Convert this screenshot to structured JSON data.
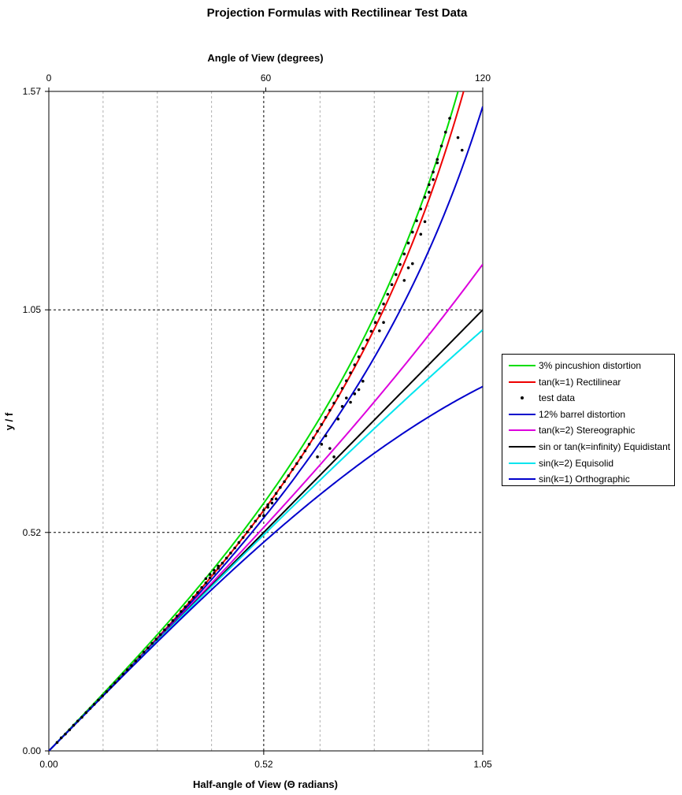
{
  "chart_data": {
    "type": "line",
    "title": "Projection Formulas with Rectilinear Test Data",
    "xlabel": "Half-angle of View (Θ radians)",
    "x2label": "Angle of View (degrees)",
    "ylabel": "y / f",
    "xlim": [
      0,
      1.05
    ],
    "ylim": [
      0,
      1.57
    ],
    "x2lim": [
      0,
      120
    ],
    "xticks": [
      0,
      0.52,
      1.05
    ],
    "xtick_labels": [
      "0.00",
      "0.52",
      "1.05"
    ],
    "x2ticks": [
      0,
      60,
      120
    ],
    "x2tick_labels": [
      "0",
      "60",
      "120"
    ],
    "yticks": [
      0,
      0.52,
      1.05,
      1.57
    ],
    "ytick_labels": [
      "0.00",
      "0.52",
      "1.05",
      "1.57"
    ],
    "grid": "vertical dashed gridlines every 15 degrees; dashed gridlines at major ticks",
    "legend_position": "right",
    "series": [
      {
        "name": "3% pincushion distortion",
        "color": "#00dd00",
        "formula": "1.03*tan(x)"
      },
      {
        "name": "tan(k=1) Rectilinear",
        "color": "#ee0000",
        "formula": "tan(x)"
      },
      {
        "name": "test data",
        "color": "#000000",
        "style": "points",
        "points": [
          [
            0.02,
            0.02
          ],
          [
            0.03,
            0.031
          ],
          [
            0.04,
            0.04
          ],
          [
            0.05,
            0.05
          ],
          [
            0.06,
            0.061
          ],
          [
            0.07,
            0.071
          ],
          [
            0.08,
            0.08
          ],
          [
            0.09,
            0.091
          ],
          [
            0.1,
            0.101
          ],
          [
            0.11,
            0.111
          ],
          [
            0.12,
            0.121
          ],
          [
            0.13,
            0.131
          ],
          [
            0.14,
            0.141
          ],
          [
            0.15,
            0.152
          ],
          [
            0.16,
            0.162
          ],
          [
            0.17,
            0.172
          ],
          [
            0.18,
            0.183
          ],
          [
            0.19,
            0.193
          ],
          [
            0.2,
            0.203
          ],
          [
            0.21,
            0.214
          ],
          [
            0.22,
            0.224
          ],
          [
            0.23,
            0.235
          ],
          [
            0.24,
            0.245
          ],
          [
            0.25,
            0.256
          ],
          [
            0.26,
            0.266
          ],
          [
            0.27,
            0.277
          ],
          [
            0.28,
            0.288
          ],
          [
            0.29,
            0.299
          ],
          [
            0.3,
            0.31
          ],
          [
            0.31,
            0.321
          ],
          [
            0.32,
            0.332
          ],
          [
            0.33,
            0.343
          ],
          [
            0.34,
            0.354
          ],
          [
            0.35,
            0.366
          ],
          [
            0.36,
            0.377
          ],
          [
            0.37,
            0.389
          ],
          [
            0.38,
            0.4
          ],
          [
            0.39,
            0.412
          ],
          [
            0.4,
            0.423
          ],
          [
            0.41,
            0.435
          ],
          [
            0.42,
            0.447
          ],
          [
            0.43,
            0.459
          ],
          [
            0.44,
            0.471
          ],
          [
            0.45,
            0.483
          ],
          [
            0.46,
            0.496
          ],
          [
            0.47,
            0.508
          ],
          [
            0.48,
            0.521
          ],
          [
            0.49,
            0.534
          ],
          [
            0.5,
            0.547
          ],
          [
            0.51,
            0.56
          ],
          [
            0.52,
            0.573
          ],
          [
            0.53,
            0.586
          ],
          [
            0.54,
            0.599
          ],
          [
            0.55,
            0.613
          ],
          [
            0.56,
            0.627
          ],
          [
            0.57,
            0.641
          ],
          [
            0.58,
            0.655
          ],
          [
            0.59,
            0.67
          ],
          [
            0.6,
            0.684
          ],
          [
            0.61,
            0.699
          ],
          [
            0.62,
            0.714
          ],
          [
            0.63,
            0.73
          ],
          [
            0.64,
            0.745
          ],
          [
            0.65,
            0.761
          ],
          [
            0.66,
            0.777
          ],
          [
            0.67,
            0.794
          ],
          [
            0.68,
            0.811
          ],
          [
            0.69,
            0.828
          ],
          [
            0.7,
            0.845
          ],
          [
            0.71,
            0.863
          ],
          [
            0.72,
            0.881
          ],
          [
            0.73,
            0.9
          ],
          [
            0.74,
            0.919
          ],
          [
            0.75,
            0.938
          ],
          [
            0.76,
            0.958
          ],
          [
            0.77,
            0.978
          ],
          [
            0.78,
            0.999
          ],
          [
            0.79,
            1.02
          ],
          [
            0.8,
            1.042
          ],
          [
            0.81,
            1.064
          ],
          [
            0.82,
            1.087
          ],
          [
            0.83,
            1.11
          ],
          [
            0.84,
            1.134
          ],
          [
            0.85,
            1.158
          ],
          [
            0.86,
            1.183
          ],
          [
            0.87,
            1.209
          ],
          [
            0.88,
            1.235
          ],
          [
            0.89,
            1.262
          ],
          [
            0.9,
            1.29
          ],
          [
            0.91,
            1.318
          ],
          [
            0.92,
            1.348
          ],
          [
            0.93,
            1.378
          ],
          [
            0.94,
            1.408
          ],
          [
            0.95,
            1.44
          ],
          [
            0.96,
            1.473
          ],
          [
            0.97,
            1.506
          ],
          [
            0.38,
            0.41
          ],
          [
            0.39,
            0.42
          ],
          [
            0.4,
            0.43
          ],
          [
            0.41,
            0.44
          ],
          [
            0.52,
            0.56
          ],
          [
            0.53,
            0.58
          ],
          [
            0.54,
            0.59
          ],
          [
            0.55,
            0.6
          ],
          [
            0.65,
            0.7
          ],
          [
            0.66,
            0.73
          ],
          [
            0.67,
            0.75
          ],
          [
            0.68,
            0.72
          ],
          [
            0.69,
            0.7
          ],
          [
            0.7,
            0.79
          ],
          [
            0.71,
            0.82
          ],
          [
            0.72,
            0.84
          ],
          [
            0.73,
            0.83
          ],
          [
            0.74,
            0.85
          ],
          [
            0.75,
            0.86
          ],
          [
            0.76,
            0.88
          ],
          [
            0.8,
            1.0
          ],
          [
            0.81,
            1.02
          ],
          [
            0.86,
            1.12
          ],
          [
            0.87,
            1.15
          ],
          [
            0.88,
            1.16
          ],
          [
            0.9,
            1.23
          ],
          [
            0.91,
            1.26
          ],
          [
            0.92,
            1.33
          ],
          [
            0.93,
            1.36
          ],
          [
            0.94,
            1.4
          ],
          [
            0.99,
            1.46
          ],
          [
            1.0,
            1.43
          ]
        ]
      },
      {
        "name": "12% barrel distortion",
        "color": "#0000cc",
        "formula": "piecewise below rectilinear"
      },
      {
        "name": "tan(k=2) Stereographic",
        "color": "#dd00dd",
        "formula": "2*tan(x/2)"
      },
      {
        "name": "sin or tan(k=infinity) Equidistant",
        "color": "#000000",
        "formula": "x"
      },
      {
        "name": "sin(k=2) Equisolid",
        "color": "#00e5ee",
        "formula": "2*sin(x/2)"
      },
      {
        "name": "sin(k=1) Orthographic",
        "color": "#0000cc",
        "formula": "sin(x)"
      }
    ]
  }
}
